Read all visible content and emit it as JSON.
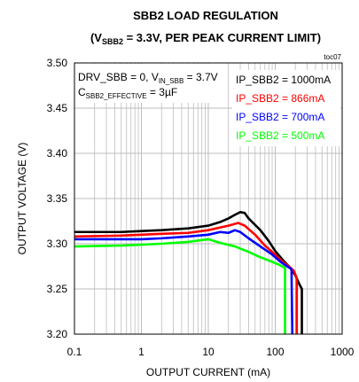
{
  "chart_data": {
    "type": "line",
    "title": "SBB2 LOAD REGULATION",
    "subtitle": {
      "prefix": "(V",
      "sub": "SBB2",
      "rest": " = 3.3V, PER PEAK CURRENT LIMIT)"
    },
    "tag": "toc07",
    "xlabel": "OUTPUT CURRENT (mA)",
    "ylabel": "OUTPUT VOLTAGE (V)",
    "xscale": "log",
    "xlim": [
      0.1,
      1000
    ],
    "ylim": [
      3.2,
      3.5
    ],
    "xticks": [
      {
        "value": 0.1,
        "label": "0.1"
      },
      {
        "value": 1,
        "label": "1"
      },
      {
        "value": 10,
        "label": "10"
      },
      {
        "value": 100,
        "label": "100"
      },
      {
        "value": 1000,
        "label": "1000"
      }
    ],
    "yticks": [
      {
        "value": 3.2,
        "label": "3.20"
      },
      {
        "value": 3.25,
        "label": "3.25"
      },
      {
        "value": 3.3,
        "label": "3.30"
      },
      {
        "value": 3.35,
        "label": "3.35"
      },
      {
        "value": 3.4,
        "label": "3.40"
      },
      {
        "value": 3.45,
        "label": "3.45"
      },
      {
        "value": 3.5,
        "label": "3.50"
      }
    ],
    "grid": true,
    "legend_position": "top-right",
    "conditions": {
      "line1": "DRV_SBB = 0, V",
      "line1_sub": "IN_SBB",
      "line1_rest": " = 3.7V",
      "line2": "C",
      "line2_sub": "SBB2_EFFECTIVE",
      "line2_rest": " = 3µF"
    },
    "series": [
      {
        "name": "IP_SBB2 = 1000mA",
        "color": "#000000",
        "points": [
          [
            0.1,
            3.313
          ],
          [
            0.5,
            3.313
          ],
          [
            1,
            3.314
          ],
          [
            2,
            3.315
          ],
          [
            5,
            3.317
          ],
          [
            10,
            3.32
          ],
          [
            15,
            3.324
          ],
          [
            20,
            3.328
          ],
          [
            25,
            3.332
          ],
          [
            30,
            3.335
          ],
          [
            35,
            3.334
          ],
          [
            40,
            3.328
          ],
          [
            60,
            3.315
          ],
          [
            80,
            3.303
          ],
          [
            100,
            3.292
          ],
          [
            130,
            3.282
          ],
          [
            160,
            3.275
          ],
          [
            180,
            3.27
          ],
          [
            200,
            3.265
          ],
          [
            230,
            3.255
          ],
          [
            250,
            3.25
          ],
          [
            250,
            3.2
          ]
        ]
      },
      {
        "name": "IP_SBB2 = 866mA",
        "color": "#ff0000",
        "points": [
          [
            0.1,
            3.308
          ],
          [
            0.5,
            3.309
          ],
          [
            1,
            3.31
          ],
          [
            2,
            3.311
          ],
          [
            5,
            3.312
          ],
          [
            10,
            3.315
          ],
          [
            20,
            3.32
          ],
          [
            28,
            3.323
          ],
          [
            35,
            3.32
          ],
          [
            50,
            3.31
          ],
          [
            70,
            3.298
          ],
          [
            100,
            3.288
          ],
          [
            130,
            3.28
          ],
          [
            160,
            3.275
          ],
          [
            190,
            3.27
          ],
          [
            210,
            3.262
          ],
          [
            210,
            3.2
          ]
        ]
      },
      {
        "name": "IP_SBB2 = 700mA",
        "color": "#0000ff",
        "points": [
          [
            0.1,
            3.305
          ],
          [
            0.5,
            3.305
          ],
          [
            1,
            3.305
          ],
          [
            2,
            3.306
          ],
          [
            5,
            3.308
          ],
          [
            10,
            3.31
          ],
          [
            15,
            3.313
          ],
          [
            20,
            3.312
          ],
          [
            25,
            3.315
          ],
          [
            30,
            3.313
          ],
          [
            40,
            3.306
          ],
          [
            60,
            3.297
          ],
          [
            90,
            3.288
          ],
          [
            120,
            3.28
          ],
          [
            150,
            3.275
          ],
          [
            175,
            3.272
          ],
          [
            180,
            3.2
          ]
        ]
      },
      {
        "name": "IP_SBB2 = 500mA",
        "color": "#00ff00",
        "points": [
          [
            0.1,
            3.297
          ],
          [
            0.5,
            3.298
          ],
          [
            1,
            3.299
          ],
          [
            2,
            3.3
          ],
          [
            5,
            3.302
          ],
          [
            10,
            3.305
          ],
          [
            15,
            3.301
          ],
          [
            25,
            3.297
          ],
          [
            40,
            3.291
          ],
          [
            60,
            3.285
          ],
          [
            90,
            3.28
          ],
          [
            120,
            3.276
          ],
          [
            140,
            3.273
          ],
          [
            140,
            3.2
          ]
        ]
      }
    ]
  }
}
